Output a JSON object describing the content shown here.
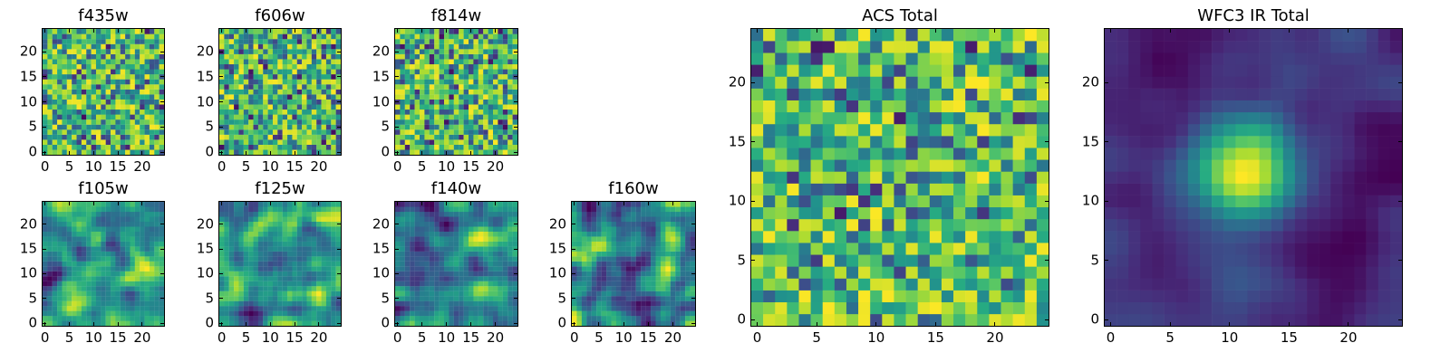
{
  "chart_data": [
    {
      "type": "heatmap",
      "title": "f435w",
      "grid_size": 25,
      "colormap": "viridis",
      "xlim": [
        0,
        24
      ],
      "ylim": [
        0,
        24
      ],
      "xticks": [
        0,
        5,
        10,
        15,
        20
      ],
      "yticks": [
        0,
        5,
        10,
        15,
        20
      ],
      "pattern": "noise",
      "seed": 435
    },
    {
      "type": "heatmap",
      "title": "f606w",
      "grid_size": 25,
      "colormap": "viridis",
      "xlim": [
        0,
        24
      ],
      "ylim": [
        0,
        24
      ],
      "xticks": [
        0,
        5,
        10,
        15,
        20
      ],
      "yticks": [
        0,
        5,
        10,
        15,
        20
      ],
      "pattern": "noise",
      "seed": 606
    },
    {
      "type": "heatmap",
      "title": "f814w",
      "grid_size": 25,
      "colormap": "viridis",
      "xlim": [
        0,
        24
      ],
      "ylim": [
        0,
        24
      ],
      "xticks": [
        0,
        5,
        10,
        15,
        20
      ],
      "yticks": [
        0,
        5,
        10,
        15,
        20
      ],
      "pattern": "noise",
      "seed": 814
    },
    {
      "type": "heatmap",
      "title": "f105w",
      "grid_size": 25,
      "colormap": "viridis",
      "xlim": [
        0,
        24
      ],
      "ylim": [
        0,
        24
      ],
      "xticks": [
        0,
        5,
        10,
        15,
        20
      ],
      "yticks": [
        0,
        5,
        10,
        15,
        20
      ],
      "pattern": "smooth",
      "seed": 105
    },
    {
      "type": "heatmap",
      "title": "f125w",
      "grid_size": 25,
      "colormap": "viridis",
      "xlim": [
        0,
        24
      ],
      "ylim": [
        0,
        24
      ],
      "xticks": [
        0,
        5,
        10,
        15,
        20
      ],
      "yticks": [
        0,
        5,
        10,
        15,
        20
      ],
      "pattern": "smooth",
      "seed": 125
    },
    {
      "type": "heatmap",
      "title": "f140w",
      "grid_size": 25,
      "colormap": "viridis",
      "xlim": [
        0,
        24
      ],
      "ylim": [
        0,
        24
      ],
      "xticks": [
        0,
        5,
        10,
        15,
        20
      ],
      "yticks": [
        0,
        5,
        10,
        15,
        20
      ],
      "pattern": "smooth",
      "seed": 140
    },
    {
      "type": "heatmap",
      "title": "f160w",
      "grid_size": 25,
      "colormap": "viridis",
      "xlim": [
        0,
        24
      ],
      "ylim": [
        0,
        24
      ],
      "xticks": [
        0,
        5,
        10,
        15,
        20
      ],
      "yticks": [
        0,
        5,
        10,
        15,
        20
      ],
      "pattern": "smooth",
      "seed": 160
    },
    {
      "type": "heatmap",
      "title": "ACS Total",
      "grid_size": 25,
      "colormap": "viridis",
      "xlim": [
        0,
        24
      ],
      "ylim": [
        0,
        24
      ],
      "xticks": [
        0,
        5,
        10,
        15,
        20
      ],
      "yticks": [
        0,
        5,
        10,
        15,
        20
      ],
      "pattern": "noise",
      "seed": 999
    },
    {
      "type": "heatmap",
      "title": "WFC3 IR Total",
      "grid_size": 25,
      "colormap": "viridis",
      "xlim": [
        0,
        24
      ],
      "ylim": [
        0,
        24
      ],
      "xticks": [
        0,
        5,
        10,
        15,
        20
      ],
      "yticks": [
        0,
        5,
        10,
        15,
        20
      ],
      "pattern": "peak",
      "seed": 777,
      "peak_center": [
        11.5,
        12.5
      ]
    }
  ]
}
